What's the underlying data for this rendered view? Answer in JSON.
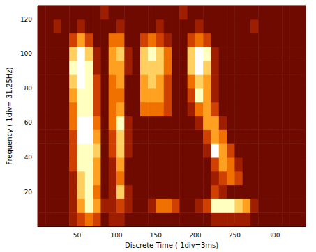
{
  "chart_data": {
    "type": "heatmap",
    "xlabel": "Discrete Time ( 1div=3ms)",
    "ylabel": "Frequency ( 1div= 31.25Hz)",
    "xlim": [
      0,
      340
    ],
    "ylim": [
      0,
      128
    ],
    "xticks": [
      50,
      100,
      150,
      200,
      250,
      300
    ],
    "yticks": [
      20,
      40,
      60,
      80,
      100,
      120
    ],
    "x_bins": [
      0,
      10,
      20,
      30,
      40,
      50,
      60,
      70,
      80,
      90,
      100,
      110,
      120,
      130,
      140,
      150,
      160,
      170,
      180,
      190,
      200,
      210,
      220,
      230,
      240,
      250,
      260,
      270,
      280,
      290,
      300,
      310,
      320,
      330,
      340
    ],
    "y_bins": [
      0,
      8,
      16,
      24,
      32,
      40,
      48,
      56,
      64,
      72,
      80,
      88,
      96,
      104,
      112,
      120,
      128
    ],
    "color_range": [
      0,
      9
    ],
    "cells": [
      [
        2,
        2,
        2,
        2,
        3,
        4,
        5,
        4,
        2,
        3,
        3,
        2,
        2,
        2,
        2,
        2,
        2,
        2,
        2,
        2,
        2,
        2,
        3,
        3,
        3,
        3,
        3,
        2,
        2,
        2,
        2,
        2,
        2,
        2
      ],
      [
        2,
        2,
        2,
        2,
        3,
        6,
        8,
        6,
        3,
        3,
        4,
        3,
        2,
        2,
        3,
        5,
        5,
        4,
        2,
        2,
        3,
        4,
        8,
        8,
        8,
        7,
        6,
        3,
        2,
        2,
        2,
        2,
        2,
        2
      ],
      [
        2,
        2,
        2,
        2,
        3,
        7,
        8,
        5,
        2,
        3,
        7,
        3,
        2,
        2,
        2,
        2,
        2,
        2,
        2,
        2,
        2,
        2,
        4,
        3,
        2,
        2,
        2,
        2,
        2,
        2,
        2,
        2,
        2,
        2
      ],
      [
        2,
        2,
        2,
        2,
        3,
        7,
        8,
        6,
        2,
        3,
        5,
        2,
        2,
        2,
        2,
        2,
        2,
        2,
        2,
        2,
        2,
        2,
        3,
        4,
        5,
        4,
        2,
        2,
        2,
        2,
        2,
        2,
        2,
        2
      ],
      [
        2,
        2,
        2,
        2,
        4,
        8,
        8,
        6,
        2,
        3,
        6,
        2,
        2,
        2,
        2,
        2,
        2,
        2,
        2,
        2,
        2,
        2,
        4,
        6,
        5,
        3,
        2,
        2,
        2,
        2,
        2,
        2,
        2,
        2
      ],
      [
        2,
        2,
        2,
        2,
        4,
        8,
        8,
        7,
        2,
        4,
        7,
        3,
        2,
        2,
        2,
        2,
        2,
        2,
        2,
        2,
        2,
        3,
        9,
        6,
        4,
        2,
        2,
        2,
        2,
        2,
        2,
        2,
        2,
        2
      ],
      [
        2,
        2,
        2,
        2,
        4,
        9,
        9,
        6,
        2,
        4,
        7,
        3,
        2,
        2,
        2,
        2,
        2,
        2,
        2,
        2,
        2,
        4,
        6,
        5,
        2,
        2,
        2,
        2,
        2,
        2,
        2,
        2,
        2,
        2
      ],
      [
        2,
        2,
        2,
        2,
        5,
        9,
        9,
        5,
        2,
        5,
        8,
        3,
        2,
        2,
        2,
        2,
        2,
        2,
        2,
        2,
        3,
        6,
        6,
        3,
        2,
        2,
        2,
        2,
        2,
        2,
        2,
        2,
        2,
        2
      ],
      [
        2,
        2,
        2,
        2,
        5,
        8,
        8,
        4,
        2,
        5,
        6,
        2,
        2,
        5,
        5,
        5,
        4,
        2,
        2,
        3,
        5,
        6,
        4,
        2,
        2,
        2,
        2,
        2,
        2,
        2,
        2,
        2,
        2,
        2
      ],
      [
        2,
        2,
        2,
        2,
        6,
        8,
        8,
        4,
        2,
        5,
        5,
        2,
        2,
        6,
        6,
        6,
        4,
        2,
        2,
        4,
        8,
        6,
        3,
        2,
        2,
        2,
        2,
        2,
        2,
        2,
        2,
        2,
        2,
        2
      ],
      [
        2,
        2,
        2,
        2,
        7,
        9,
        8,
        4,
        2,
        5,
        6,
        2,
        2,
        6,
        7,
        6,
        4,
        2,
        2,
        5,
        7,
        6,
        3,
        2,
        2,
        2,
        2,
        2,
        2,
        2,
        2,
        2,
        2,
        2
      ],
      [
        2,
        2,
        2,
        2,
        8,
        9,
        8,
        3,
        2,
        6,
        6,
        3,
        2,
        7,
        7,
        7,
        5,
        2,
        2,
        7,
        9,
        7,
        3,
        2,
        2,
        2,
        2,
        2,
        2,
        2,
        2,
        2,
        2,
        2
      ],
      [
        2,
        2,
        2,
        2,
        7,
        9,
        7,
        3,
        2,
        6,
        7,
        3,
        2,
        7,
        8,
        7,
        5,
        2,
        2,
        7,
        9,
        8,
        3,
        2,
        2,
        2,
        2,
        2,
        2,
        2,
        2,
        2,
        2,
        2
      ],
      [
        2,
        2,
        2,
        2,
        4,
        6,
        4,
        2,
        2,
        5,
        5,
        2,
        2,
        4,
        5,
        4,
        3,
        2,
        2,
        4,
        5,
        4,
        2,
        2,
        2,
        2,
        2,
        2,
        2,
        2,
        2,
        2,
        2,
        2
      ],
      [
        2,
        2,
        3,
        2,
        2,
        3,
        2,
        2,
        2,
        2,
        3,
        2,
        2,
        2,
        2,
        3,
        2,
        2,
        2,
        2,
        3,
        2,
        2,
        2,
        2,
        2,
        2,
        3,
        2,
        2,
        2,
        2,
        2,
        2
      ],
      [
        2,
        2,
        2,
        2,
        2,
        2,
        2,
        2,
        3,
        2,
        2,
        2,
        2,
        2,
        2,
        2,
        2,
        2,
        3,
        2,
        2,
        2,
        2,
        2,
        2,
        2,
        2,
        2,
        2,
        2,
        2,
        2,
        2,
        2
      ]
    ]
  }
}
